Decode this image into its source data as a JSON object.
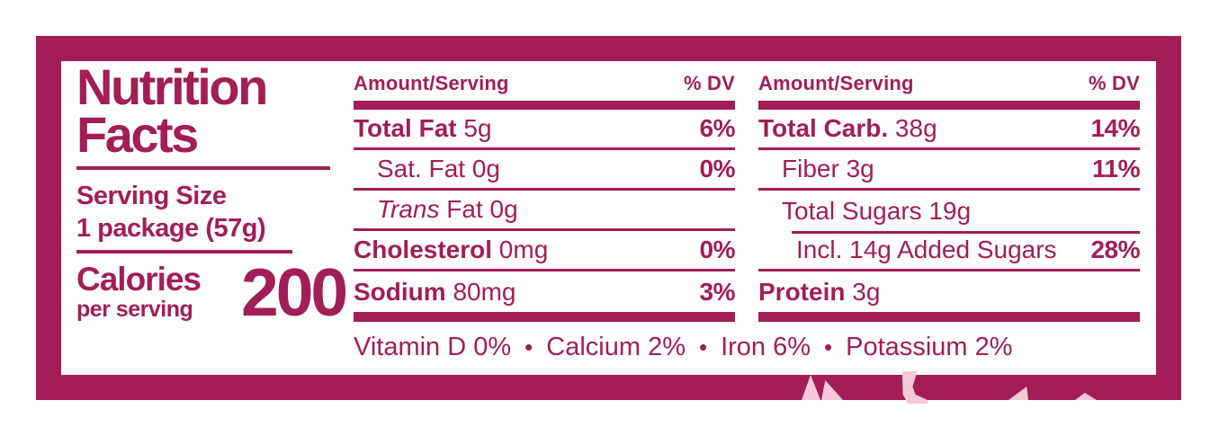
{
  "label": {
    "title_line1": "Nutrition",
    "title_line2": "Facts",
    "serving_size_label": "Serving Size",
    "serving_size_value": "1 package (57g)",
    "calories_label": "Calories",
    "calories_sublabel": "per serving",
    "calories_value": "200"
  },
  "columns": [
    {
      "header": {
        "amount": "Amount/Serving",
        "dv": "% DV"
      },
      "rows": [
        {
          "bold": "Total Fat",
          "rest": " 5g",
          "dv": "6%"
        },
        {
          "text": "Sat. Fat 0g",
          "dv": "0%"
        },
        {
          "italic": "Trans",
          "rest": " Fat 0g",
          "dv": ""
        },
        {
          "bold": "Cholesterol",
          "rest": " 0mg",
          "dv": "0%"
        },
        {
          "bold": "Sodium",
          "rest": " 80mg",
          "dv": "3%"
        }
      ]
    },
    {
      "header": {
        "amount": "Amount/Serving",
        "dv": "% DV"
      },
      "rows": [
        {
          "bold": "Total Carb.",
          "rest": " 38g",
          "dv": "14%"
        },
        {
          "text": "Fiber 3g",
          "dv": "11%"
        },
        {
          "text": "Total Sugars 19g",
          "dv": ""
        },
        {
          "text": "Incl. 14g Added Sugars",
          "dv": "28%"
        },
        {
          "bold": "Protein",
          "rest": " 3g",
          "dv": ""
        }
      ]
    }
  ],
  "footer": {
    "items": [
      "Vitamin D 0%",
      "Calcium 2%",
      "Iron 6%",
      "Potassium 2%"
    ],
    "bullet": "•"
  },
  "colors": {
    "accent": "#A31E56",
    "decor": "#F5C9DA",
    "background": "#FFFFFF"
  }
}
